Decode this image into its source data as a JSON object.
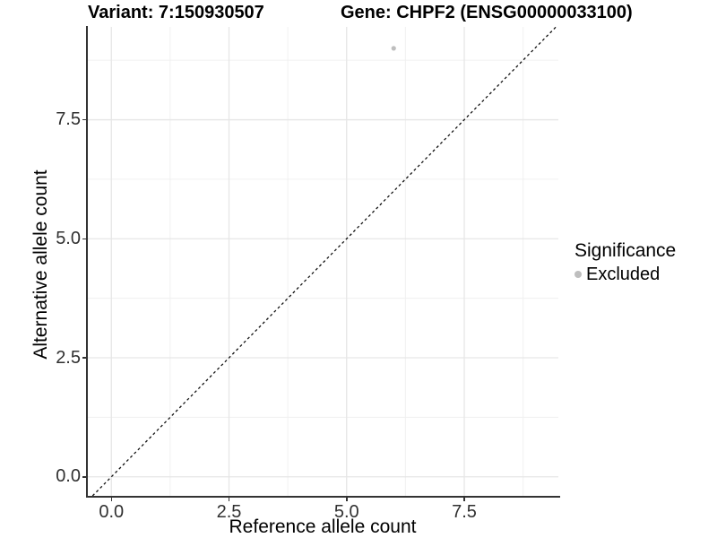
{
  "chart_data": {
    "type": "scatter",
    "title_left": "Variant: 7:150930507",
    "title_right": "Gene: CHPF2 (ENSG00000033100)",
    "xlabel": "Reference allele count",
    "ylabel": "Alternative allele count",
    "xlim": [
      -0.5,
      9.5
    ],
    "ylim": [
      -0.4,
      9.45
    ],
    "x_ticks": {
      "major": [
        0,
        2.5,
        5,
        7.5
      ],
      "minor": [
        1.25,
        3.75,
        6.25,
        8.75
      ],
      "labels": [
        "0.0",
        "2.5",
        "5.0",
        "7.5"
      ]
    },
    "y_ticks": {
      "major": [
        0,
        2.5,
        5,
        7.5
      ],
      "minor": [
        1.25,
        3.75,
        6.25,
        8.75
      ],
      "labels": [
        "0.0",
        "2.5",
        "5.0",
        "7.5"
      ]
    },
    "grid": true,
    "points": [
      {
        "x": 6,
        "y": 9,
        "series": "Excluded"
      }
    ],
    "reference_line": {
      "kind": "identity",
      "slope": 1,
      "intercept": 0,
      "style": "dashed"
    },
    "legend": {
      "position": "right",
      "title": "Significance",
      "items": [
        {
          "label": "Excluded",
          "color": "#bebebe"
        }
      ]
    },
    "style": {
      "point_color": "#bebebe",
      "grid_major_color": "#e6e6e6",
      "grid_minor_color": "#f0f0f0",
      "axis_line_color": "#333333",
      "dash_color": "#111111",
      "background": "#ffffff"
    }
  }
}
